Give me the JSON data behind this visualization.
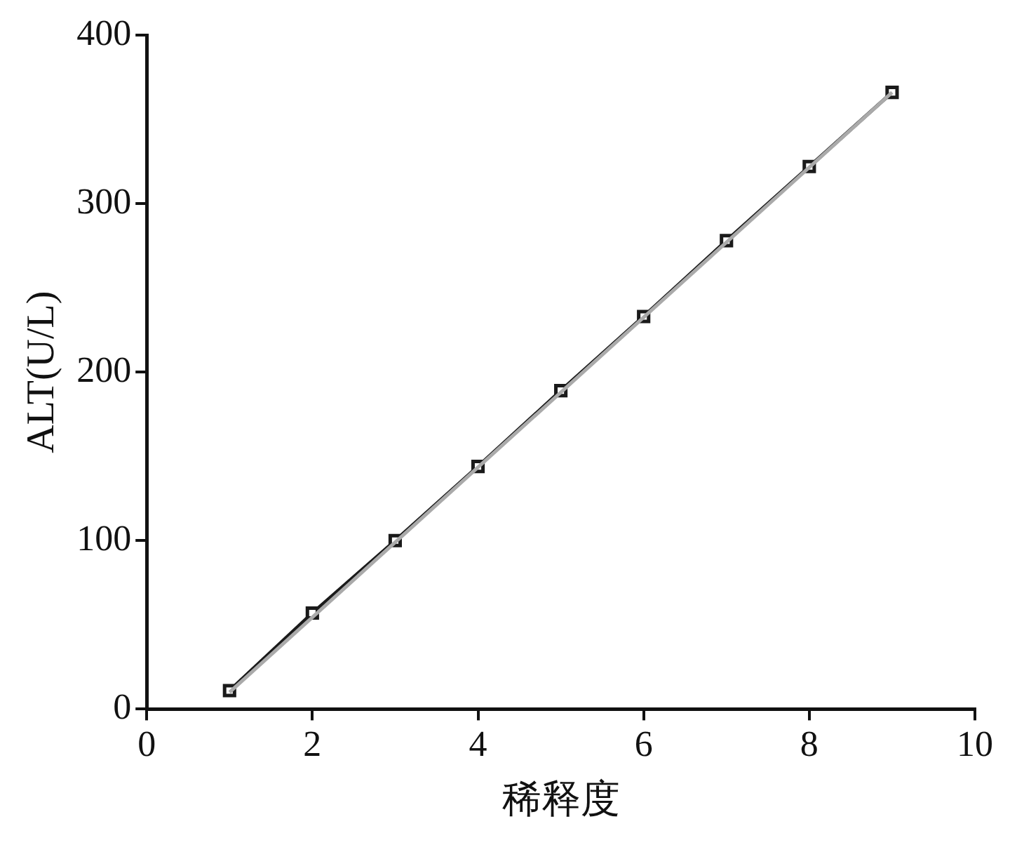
{
  "chart_data": {
    "type": "line",
    "xlabel": "稀释度",
    "ylabel": "ALT(U/L)",
    "x": [
      1,
      2,
      3,
      4,
      5,
      6,
      7,
      8,
      9
    ],
    "series": [
      {
        "color": "#aaaaaa",
        "x": [
          1,
          9
        ],
        "values": [
          10,
          366
        ],
        "marker": "none"
      },
      {
        "color": "#1a1a1a",
        "values": [
          11,
          57,
          100,
          144,
          189,
          233,
          278,
          322,
          366
        ],
        "marker": "square"
      }
    ],
    "xlim": [
      0,
      10
    ],
    "xticks": [
      0,
      2,
      4,
      6,
      8,
      10
    ],
    "ylim": [
      0,
      400
    ],
    "yticks": [
      0,
      100,
      200,
      300,
      400
    ],
    "grid": false,
    "legend": false,
    "line_style": "solid"
  }
}
